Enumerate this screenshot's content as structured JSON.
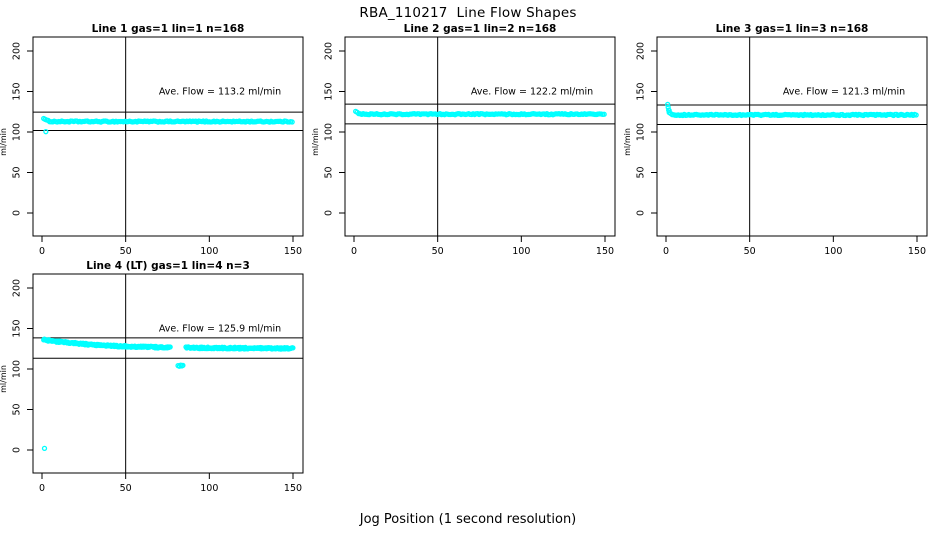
{
  "title": "RBA_110217  Line Flow Shapes",
  "xlabel": "Jog Position (1 second resolution)",
  "colors": {
    "points": "#00FFFF",
    "axis": "#000000",
    "background": "#FFFFFF"
  },
  "axes": {
    "ylabel": "ml/min",
    "ylim": [
      0,
      200
    ],
    "xlim": [
      0,
      150
    ],
    "y_ticks": [
      0,
      50,
      100,
      150,
      200
    ],
    "x_ticks": [
      0,
      50,
      100,
      150
    ],
    "grid": false
  },
  "chart_data": [
    {
      "type": "scatter",
      "title": "Line 1 gas=1 lin=1 n=168",
      "ave_flow_text": "Ave. Flow =  113.2  ml/min",
      "ave_flow": 113.2,
      "n": 168,
      "vline": 50,
      "hlines": [
        124.5,
        101.9
      ],
      "band": {
        "x_start": 1,
        "x_end": 150,
        "step": 0.9,
        "y_start": 117.2,
        "y_end": 112.9,
        "decay": 1.6,
        "jitter": 0.7,
        "gaps": []
      },
      "outliers": [
        [
          2.3,
          100.4
        ]
      ]
    },
    {
      "type": "scatter",
      "title": "Line 2 gas=1 lin=2 n=168",
      "ave_flow_text": "Ave. Flow =  122.2  ml/min",
      "ave_flow": 122.2,
      "n": 168,
      "vline": 50,
      "hlines": [
        134.4,
        110.0
      ],
      "band": {
        "x_start": 1,
        "x_end": 150,
        "step": 0.9,
        "y_start": 126.0,
        "y_end": 122.0,
        "decay": 1.5,
        "jitter": 0.7,
        "gaps": []
      },
      "outliers": []
    },
    {
      "type": "scatter",
      "title": "Line 3 gas=1 lin=3 n=168",
      "ave_flow_text": "Ave. Flow =  121.3  ml/min",
      "ave_flow": 121.3,
      "n": 168,
      "vline": 50,
      "hlines": [
        133.4,
        109.2
      ],
      "band": {
        "x_start": 1,
        "x_end": 150,
        "step": 0.9,
        "y_start": 134.5,
        "y_end": 121.1,
        "decay": 0.9,
        "jitter": 0.7,
        "gaps": []
      },
      "outliers": [
        [
          1.3,
          130.5
        ],
        [
          1.6,
          127.0
        ],
        [
          1.9,
          124.0
        ]
      ]
    },
    {
      "type": "scatter",
      "title": "Line 4 (LT) gas=1 lin=4 n=3",
      "ave_flow_text": "Ave. Flow =  125.9  ml/min",
      "ave_flow": 125.9,
      "n": 3,
      "vline": 50,
      "hlines": [
        138.5,
        113.3
      ],
      "band": {
        "x_start": 1,
        "x_end": 150,
        "step": 0.45,
        "y_start": 136.0,
        "y_end": 125.3,
        "decay": 36,
        "jitter": 1.0,
        "gaps": [
          [
            77,
            86
          ]
        ]
      },
      "outliers": [
        [
          1.5,
          2.0
        ],
        [
          81.3,
          104.2
        ],
        [
          82.1,
          103.4
        ],
        [
          82.9,
          104.8
        ],
        [
          83.6,
          103.8
        ],
        [
          84.2,
          104.4
        ]
      ]
    }
  ]
}
